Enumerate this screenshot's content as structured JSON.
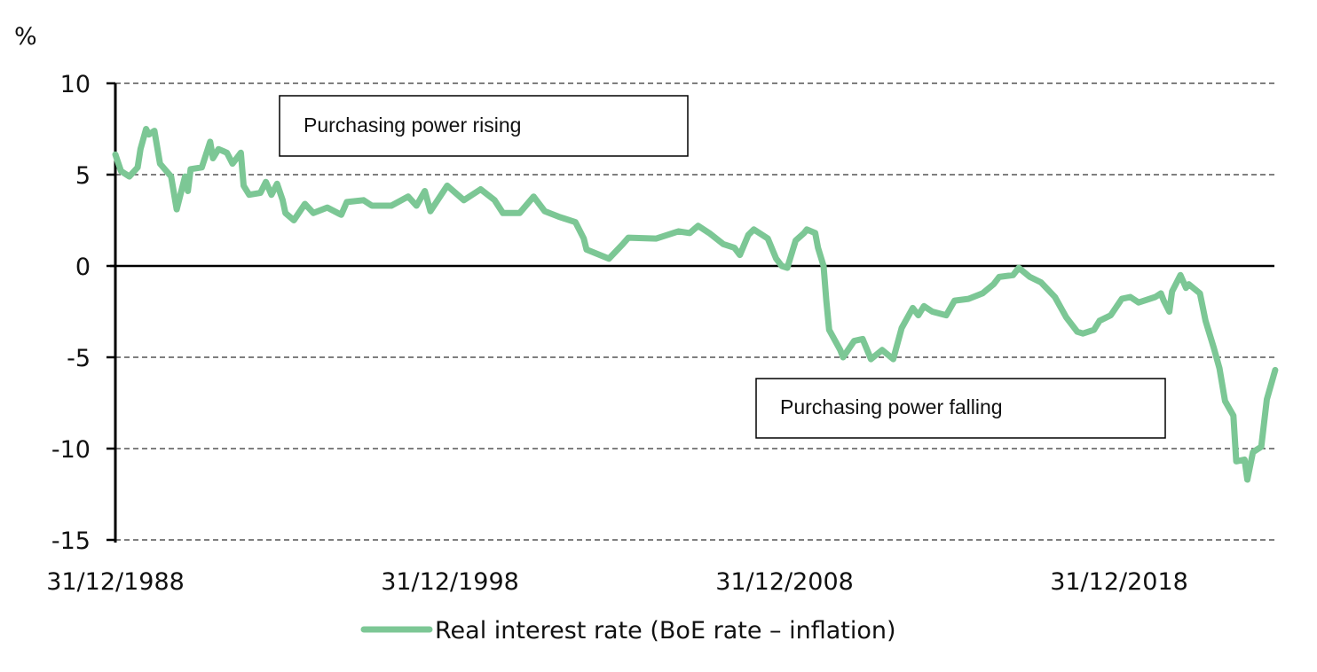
{
  "chart_data": {
    "type": "line",
    "title": "",
    "xlabel": "",
    "ylabel": "%",
    "ylim": [
      -15,
      10
    ],
    "yticks": [
      10,
      5,
      0,
      -5,
      -10,
      -15
    ],
    "xticks": [
      "31/12/1988",
      "31/12/1998",
      "31/12/2008",
      "31/12/2018"
    ],
    "grid": "horizontal dashed",
    "legend_position": "bottom",
    "annotations": [
      "Purchasing power rising",
      "Purchasing power falling"
    ],
    "series": [
      {
        "name": "Real interest rate (BoE rate – inflation)",
        "color": "#7cc795",
        "x": [
          "1988-12",
          "1989-02",
          "1989-05",
          "1989-08",
          "1989-09",
          "1989-11",
          "1989-12",
          "1990-02",
          "1990-04",
          "1990-08",
          "1990-10",
          "1991-01",
          "1991-02",
          "1991-03",
          "1991-07",
          "1991-10",
          "1991-11",
          "1992-01",
          "1992-04",
          "1992-06",
          "1992-09",
          "1992-10",
          "1992-12",
          "1993-04",
          "1993-06",
          "1993-08",
          "1993-10",
          "1993-12",
          "1994-01",
          "1994-04",
          "1994-08",
          "1994-11",
          "1995-04",
          "1995-09",
          "1995-11",
          "1996-05",
          "1996-08",
          "1997-03",
          "1997-09",
          "1997-12",
          "1998-03",
          "1998-05",
          "1998-11",
          "1999-05",
          "1999-11",
          "2000-04",
          "2000-07",
          "2001-01",
          "2001-06",
          "2001-10",
          "2002-03",
          "2002-09",
          "2002-12",
          "2003-01",
          "2003-09",
          "2004-02",
          "2004-04",
          "2005-02",
          "2005-10",
          "2006-02",
          "2006-05",
          "2006-09",
          "2007-02",
          "2007-06",
          "2007-08",
          "2007-11",
          "2008-01",
          "2008-06",
          "2008-09",
          "2008-11",
          "2009-01",
          "2009-04",
          "2009-07",
          "2009-08",
          "2009-11",
          "2009-12",
          "2010-02",
          "2010-03",
          "2010-04",
          "2010-08",
          "2010-09",
          "2011-01",
          "2011-04",
          "2011-07",
          "2011-11",
          "2012-03",
          "2012-06",
          "2012-10",
          "2012-12",
          "2013-02",
          "2013-05",
          "2013-10",
          "2014-01",
          "2014-06",
          "2014-11",
          "2015-03",
          "2015-05",
          "2015-10",
          "2015-12",
          "2016-04",
          "2016-08",
          "2017-01",
          "2017-05",
          "2017-09",
          "2017-11",
          "2018-03",
          "2018-05",
          "2018-09",
          "2019-01",
          "2019-04",
          "2019-07",
          "2020-01",
          "2020-03",
          "2020-04",
          "2020-06",
          "2020-07",
          "2020-10",
          "2020-12",
          "2021-01",
          "2021-05",
          "2021-07",
          "2021-10",
          "2021-12",
          "2022-02",
          "2022-05",
          "2022-06",
          "2022-09",
          "2022-10",
          "2022-12",
          "2023-03",
          "2023-05",
          "2023-08"
        ],
        "values": [
          6.1,
          5.2,
          4.9,
          5.4,
          6.4,
          7.5,
          7.2,
          7.4,
          5.6,
          4.9,
          3.1,
          4.9,
          4.1,
          5.3,
          5.4,
          6.8,
          5.9,
          6.4,
          6.2,
          5.6,
          6.2,
          4.4,
          3.9,
          4.0,
          4.6,
          3.9,
          4.5,
          3.6,
          2.9,
          2.5,
          3.4,
          2.9,
          3.2,
          2.8,
          3.5,
          3.6,
          3.3,
          3.3,
          3.8,
          3.3,
          4.1,
          3.0,
          4.4,
          3.6,
          4.2,
          3.6,
          2.9,
          2.9,
          3.8,
          3.0,
          2.7,
          2.4,
          1.5,
          0.9,
          0.4,
          1.2,
          1.55,
          1.5,
          1.9,
          1.8,
          2.2,
          1.8,
          1.2,
          1.0,
          0.6,
          1.7,
          2.0,
          1.5,
          0.4,
          0.0,
          -0.1,
          1.4,
          1.8,
          2.0,
          1.8,
          1.0,
          0.0,
          -1.9,
          -3.5,
          -4.6,
          -5.0,
          -4.1,
          -4.0,
          -5.1,
          -4.6,
          -5.1,
          -3.4,
          -2.3,
          -2.7,
          -2.2,
          -2.5,
          -2.7,
          -1.9,
          -1.8,
          -1.5,
          -1.0,
          -0.6,
          -0.5,
          -0.1,
          -0.6,
          -0.9,
          -1.7,
          -2.8,
          -3.6,
          -3.7,
          -3.5,
          -3.0,
          -2.7,
          -1.8,
          -1.7,
          -2.0,
          -1.7,
          -1.5,
          -1.9,
          -2.5,
          -1.4,
          -0.5,
          -1.2,
          -1.0,
          -1.5,
          -3.0,
          -4.5,
          -5.6,
          -7.4,
          -8.2,
          -10.7,
          -10.6,
          -11.7,
          -10.2,
          -9.9,
          -7.3,
          -5.7
        ]
      }
    ]
  }
}
